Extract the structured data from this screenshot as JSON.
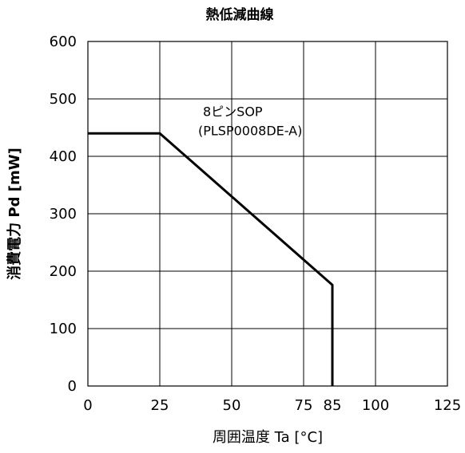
{
  "chart_data": {
    "type": "line",
    "title": "熱低減曲線",
    "xlabel": "周囲温度 Ta [°C]",
    "ylabel": "消費電力 Pd [mW]",
    "xlim": [
      0,
      125
    ],
    "ylim": [
      0,
      600
    ],
    "x_ticks": [
      0,
      25,
      50,
      75,
      85,
      100,
      125
    ],
    "x_tick_labels": [
      "0",
      "25",
      "50",
      "75",
      "85",
      "100",
      "125"
    ],
    "y_ticks": [
      0,
      100,
      200,
      300,
      400,
      500,
      600
    ],
    "y_tick_labels": [
      "0",
      "100",
      "200",
      "300",
      "400",
      "500",
      "600"
    ],
    "grid": true,
    "series": [
      {
        "x": [
          0,
          25,
          85,
          85
        ],
        "y": [
          440,
          440,
          176,
          0
        ]
      }
    ],
    "annotation": {
      "lines": [
        "8ピンSOP",
        "(PLSP0008DE-A)"
      ],
      "x": 40,
      "y": 470
    }
  }
}
